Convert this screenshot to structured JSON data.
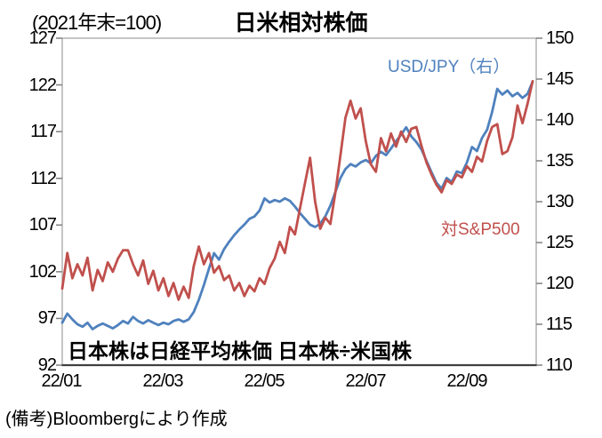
{
  "footer": "(備考)Bloombergにより作成",
  "chart_data": {
    "type": "line",
    "title": "日米相対株価",
    "unit_note": "(2021年末=100)",
    "annotation": "日本株は日経平均株価 日本株÷米国株",
    "legend_position": "inside-plot",
    "grid": false,
    "x_axis": {
      "labels": [
        "22/01",
        "22/03",
        "22/05",
        "22/07",
        "22/09"
      ],
      "tick_months": [
        0,
        2,
        4,
        6,
        8
      ],
      "range_months": [
        0,
        9.37
      ]
    },
    "left_axis": {
      "min": 92,
      "max": 127,
      "step": 5,
      "labels": [
        "127",
        "122",
        "117",
        "112",
        "107",
        "102",
        "97",
        "92"
      ]
    },
    "right_axis": {
      "min": 110,
      "max": 150,
      "step": 5,
      "labels": [
        "150",
        "145",
        "140",
        "135",
        "130",
        "125",
        "120",
        "115",
        "110"
      ]
    },
    "x_start_month": 0,
    "x_step_month": 0.1,
    "series": [
      {
        "name": "USD/JPY（右）",
        "axis": "right",
        "color": "#4F81BD",
        "values": [
          115.2,
          116.3,
          115.6,
          115.0,
          114.7,
          115.2,
          114.4,
          114.8,
          115.1,
          114.8,
          114.5,
          114.9,
          115.4,
          115.1,
          115.9,
          115.4,
          115.1,
          115.5,
          115.2,
          114.9,
          115.2,
          115.0,
          115.4,
          115.6,
          115.3,
          115.6,
          116.5,
          118.0,
          119.8,
          121.8,
          123.7,
          122.9,
          124.2,
          125.1,
          125.9,
          126.6,
          127.2,
          127.9,
          128.2,
          128.9,
          130.4,
          129.9,
          130.2,
          130.0,
          130.4,
          130.1,
          129.4,
          128.6,
          127.9,
          127.2,
          126.9,
          127.3,
          128.2,
          129.5,
          131.2,
          132.9,
          134.0,
          134.6,
          134.3,
          134.8,
          135.1,
          134.7,
          135.6,
          136.1,
          135.7,
          136.5,
          137.4,
          138.2,
          139.1,
          138.0,
          137.3,
          136.4,
          135.0,
          133.6,
          132.3,
          131.6,
          132.9,
          132.4,
          133.7,
          133.5,
          134.8,
          136.7,
          136.2,
          137.8,
          138.8,
          141.0,
          143.8,
          143.1,
          143.6,
          142.9,
          143.3,
          142.7,
          143.2,
          144.7
        ]
      },
      {
        "name": "対S&P500",
        "axis": "left",
        "color": "#C0504D",
        "values": [
          100.2,
          104.0,
          101.3,
          102.8,
          101.6,
          103.5,
          100.0,
          102.2,
          101.0,
          103.0,
          102.0,
          103.4,
          104.3,
          104.3,
          102.8,
          101.6,
          103.2,
          100.7,
          102.1,
          100.0,
          101.3,
          99.4,
          100.8,
          99.0,
          100.4,
          99.2,
          102.6,
          104.7,
          102.8,
          104.0,
          101.9,
          102.6,
          101.1,
          101.6,
          100.0,
          100.8,
          99.4,
          100.5,
          99.9,
          101.3,
          100.7,
          102.4,
          103.4,
          105.2,
          104.0,
          106.8,
          106.0,
          108.8,
          111.5,
          114.2,
          109.5,
          106.6,
          107.8,
          107.1,
          110.5,
          114.5,
          118.5,
          120.3,
          118.4,
          119.5,
          116.0,
          113.5,
          112.7,
          116.3,
          114.9,
          116.8,
          115.4,
          117.0,
          115.9,
          117.3,
          117.5,
          115.5,
          113.7,
          112.4,
          111.3,
          110.5,
          111.8,
          111.4,
          112.4,
          112.1,
          113.3,
          112.7,
          114.3,
          113.8,
          116.0,
          117.5,
          117.8,
          114.6,
          114.9,
          116.4,
          119.8,
          117.9,
          120.0,
          122.4
        ]
      }
    ],
    "plot_colors": {
      "frame_gray": "#A6A6A6",
      "bottom_axis_dark": "#404040",
      "tick_gray": "#808080"
    }
  }
}
